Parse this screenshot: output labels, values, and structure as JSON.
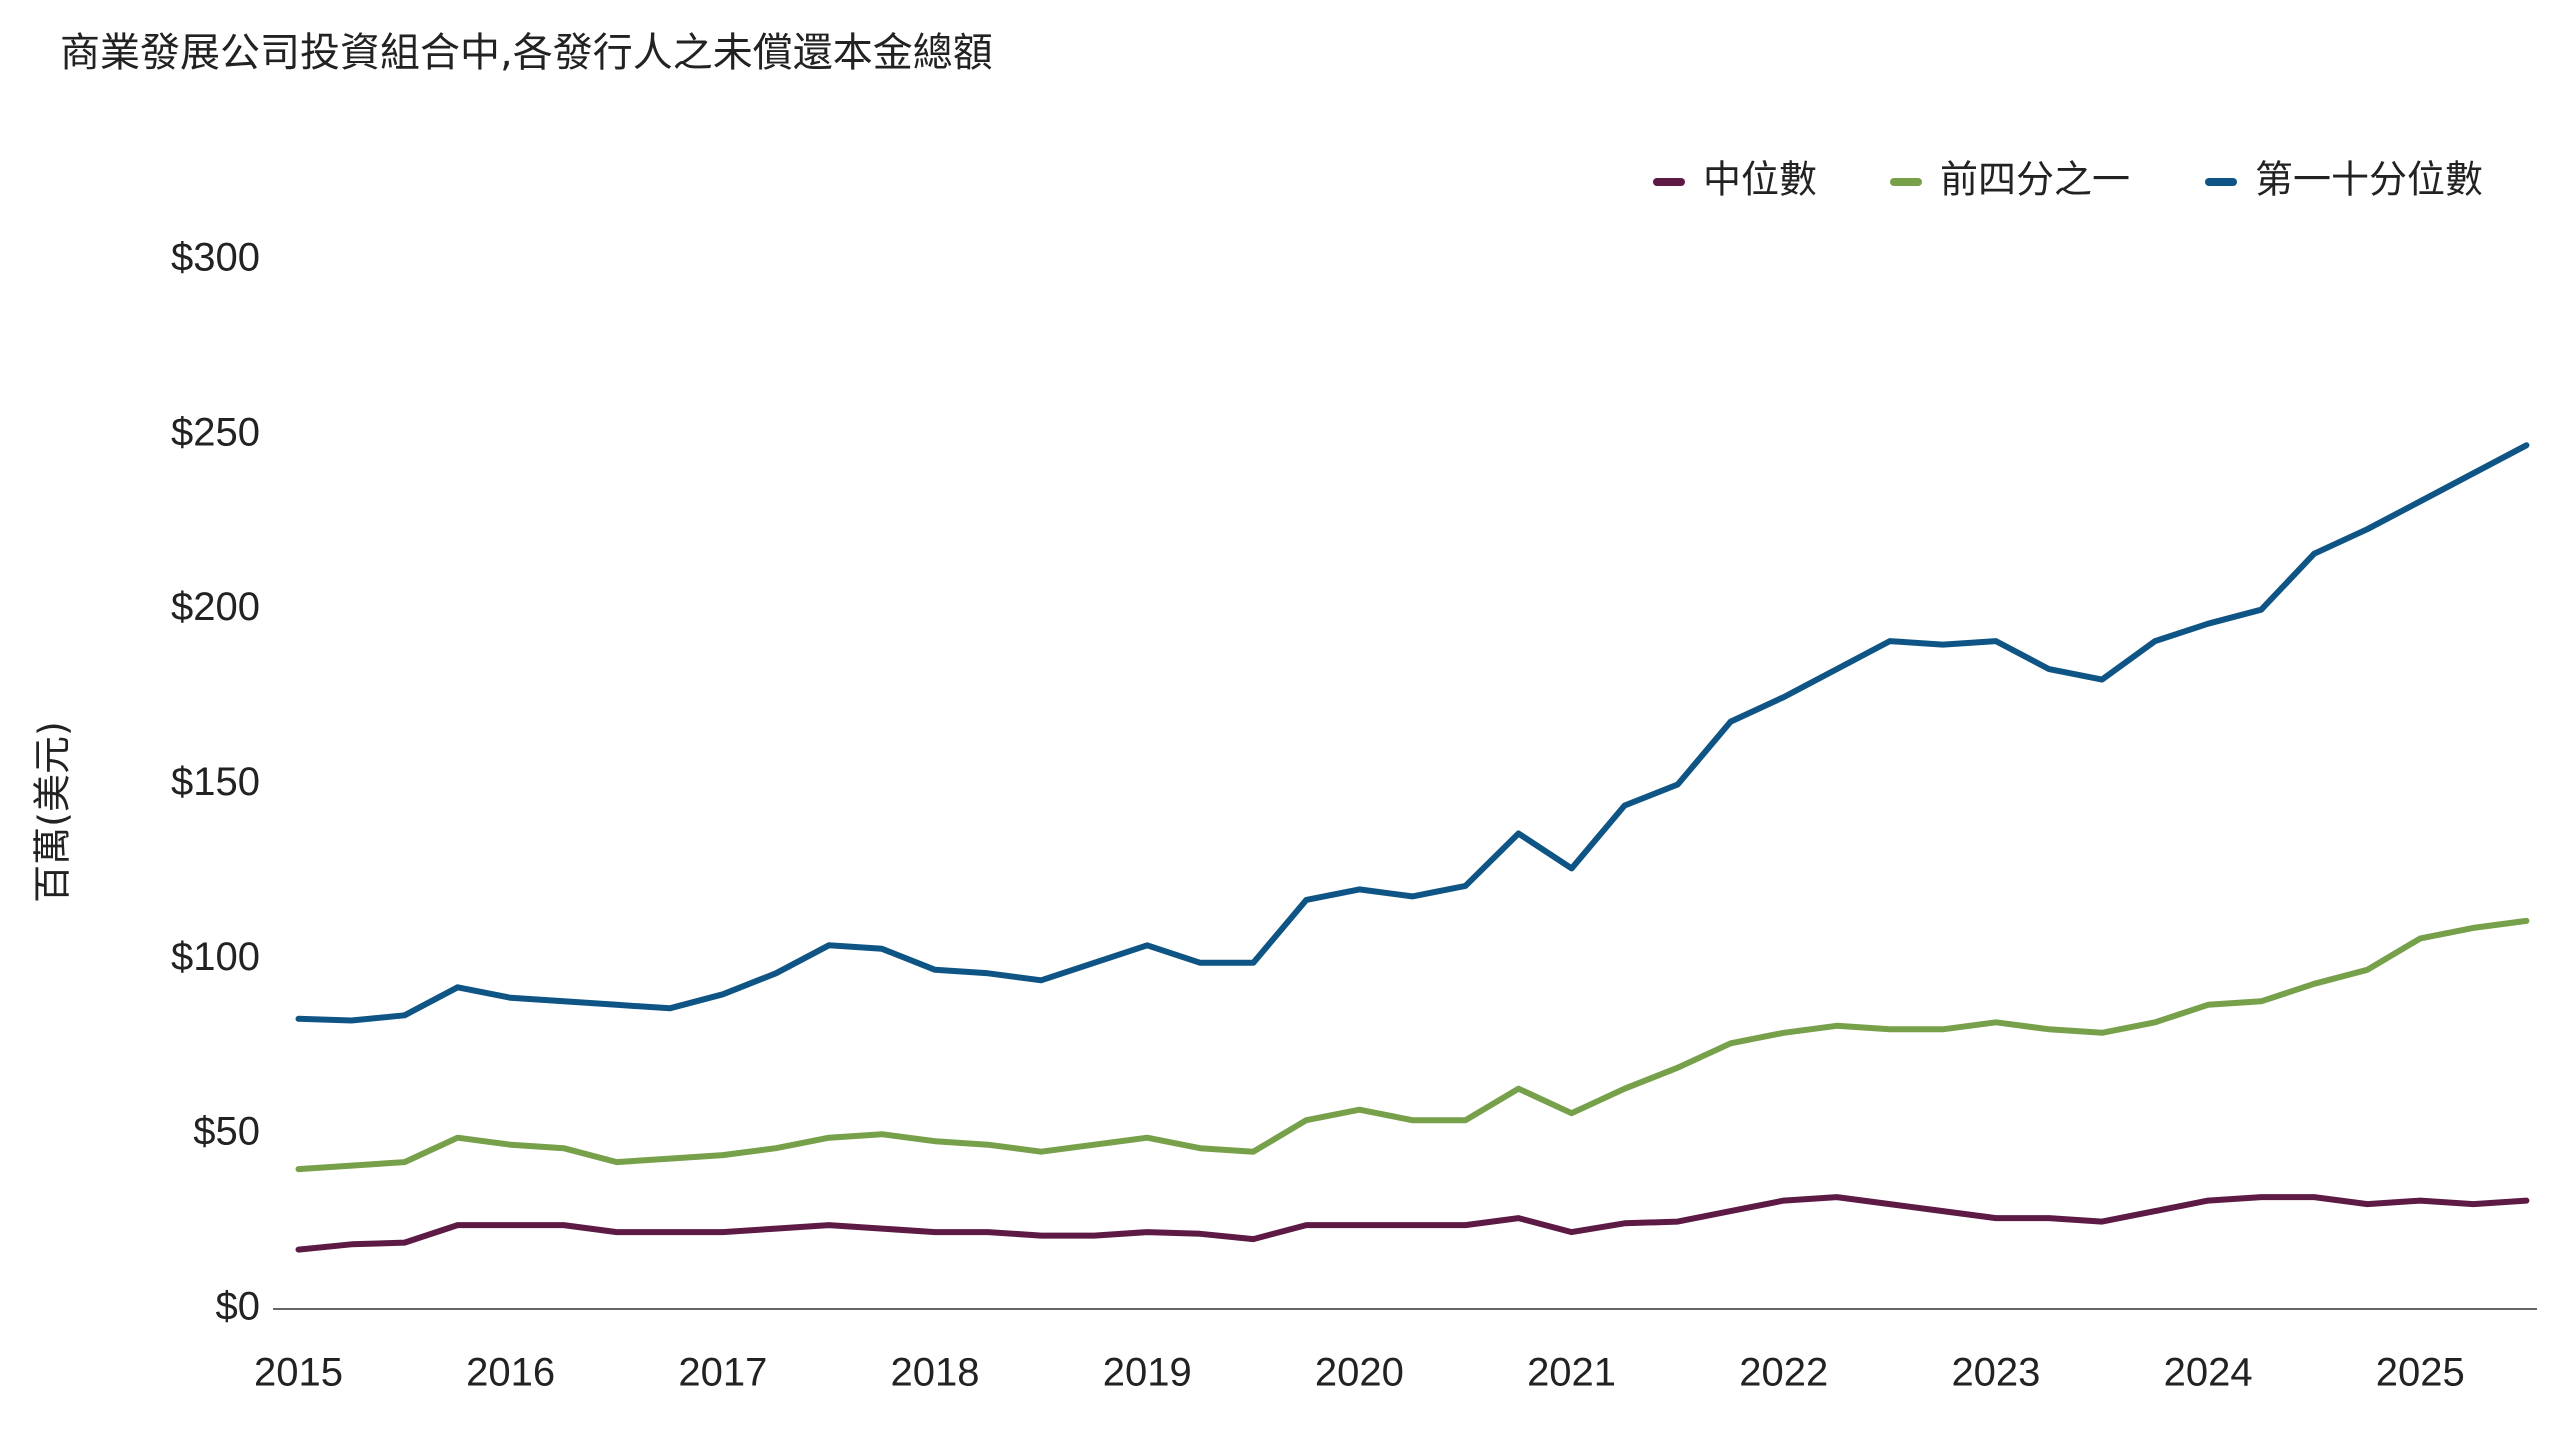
{
  "chart_data": {
    "type": "line",
    "title": "商業發展公司投資組合中,各發行人之未償還本金總額",
    "y_label": "百萬(美元)",
    "x": [
      2015,
      2015.25,
      2015.5,
      2015.75,
      2016,
      2016.25,
      2016.5,
      2016.75,
      2017,
      2017.25,
      2017.5,
      2017.75,
      2018,
      2018.25,
      2018.5,
      2018.75,
      2019,
      2019.25,
      2019.5,
      2019.75,
      2020,
      2020.25,
      2020.5,
      2020.75,
      2021,
      2021.25,
      2021.5,
      2021.75,
      2022,
      2022.25,
      2022.5,
      2022.75,
      2023,
      2023.25,
      2023.5,
      2023.75,
      2024,
      2024.25,
      2024.5,
      2024.75,
      2025,
      2025.25,
      2025.5
    ],
    "xlim": [
      2014.88,
      2025.55
    ],
    "xticks": [
      2015,
      2016,
      2017,
      2018,
      2019,
      2020,
      2021,
      2022,
      2023,
      2024,
      2025
    ],
    "ylim": [
      0,
      300
    ],
    "yticks": [
      {
        "value": 0,
        "label": "$0"
      },
      {
        "value": 50,
        "label": "$50"
      },
      {
        "value": 100,
        "label": "$100"
      },
      {
        "value": 150,
        "label": "$150"
      },
      {
        "value": 200,
        "label": "$200"
      },
      {
        "value": 250,
        "label": "$250"
      },
      {
        "value": 300,
        "label": "$300"
      }
    ],
    "grid": false,
    "legend": "top-right",
    "series": [
      {
        "name": "中位數",
        "color": "#5c1a45",
        "values": [
          17,
          18.5,
          19,
          24,
          24,
          24,
          22,
          22,
          22,
          23,
          24,
          23,
          22,
          22,
          21,
          21,
          22,
          21.5,
          20,
          24,
          24,
          24,
          24,
          26,
          22,
          24.5,
          25,
          28,
          31,
          32,
          30,
          28,
          26,
          26,
          25,
          28,
          31,
          32,
          32,
          30,
          31,
          30,
          31
        ]
      },
      {
        "name": "前四分之一",
        "color": "#76a04a",
        "values": [
          40,
          41,
          42,
          49,
          47,
          46,
          42,
          43,
          44,
          46,
          49,
          50,
          48,
          47,
          45,
          47,
          49,
          46,
          45,
          54,
          57,
          54,
          54,
          63,
          56,
          63,
          69,
          76,
          79,
          81,
          80,
          80,
          82,
          80,
          79,
          82,
          87,
          88,
          93,
          97,
          106,
          109,
          111
        ]
      },
      {
        "name": "第一十分位數",
        "color": "#0e5585",
        "values": [
          83,
          82.5,
          84,
          92,
          89,
          88,
          87,
          86,
          90,
          96,
          104,
          103,
          97,
          96,
          94,
          99,
          104,
          99,
          99,
          117,
          120,
          118,
          121,
          136,
          126,
          144,
          150,
          168,
          175,
          183,
          191,
          190,
          191,
          183,
          180,
          191,
          196,
          200,
          216,
          223,
          231,
          239,
          247
        ]
      }
    ]
  }
}
